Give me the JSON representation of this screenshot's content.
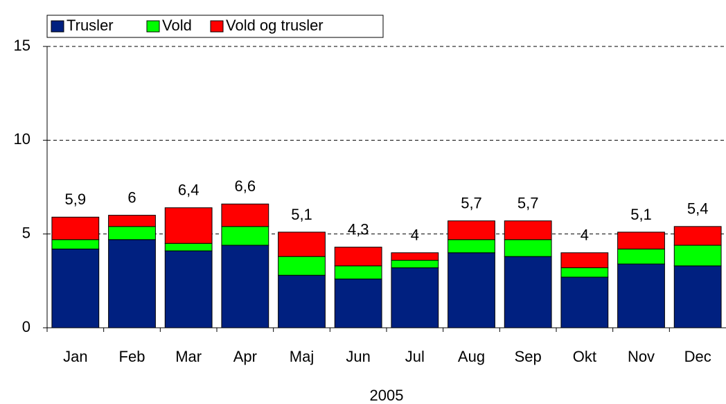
{
  "chart_data": {
    "type": "stacked-bar",
    "x_label": "2005",
    "categories": [
      "Jan",
      "Feb",
      "Mar",
      "Apr",
      "Maj",
      "Jun",
      "Jul",
      "Aug",
      "Sep",
      "Okt",
      "Nov",
      "Dec"
    ],
    "series": [
      {
        "name": "Trusler",
        "color": "#002080",
        "values": [
          4.2,
          4.7,
          4.1,
          4.4,
          2.8,
          2.6,
          3.2,
          4.0,
          3.8,
          2.7,
          3.4,
          3.3
        ]
      },
      {
        "name": "Vold",
        "color": "#00ff00",
        "values": [
          0.5,
          0.7,
          0.4,
          1.0,
          1.0,
          0.7,
          0.4,
          0.7,
          0.9,
          0.5,
          0.8,
          1.1
        ]
      },
      {
        "name": "Vold og trusler",
        "color": "#ff0000",
        "values": [
          1.2,
          0.6,
          1.9,
          1.2,
          1.3,
          1.0,
          0.4,
          1.0,
          1.0,
          0.8,
          0.9,
          1.0
        ]
      }
    ],
    "totals": [
      5.9,
      6,
      6.4,
      6.6,
      5.1,
      4.3,
      4,
      5.7,
      5.7,
      4,
      5.1,
      5.4
    ],
    "total_labels": [
      "5,9",
      "6",
      "6,4",
      "6,6",
      "5,1",
      "4,3",
      "4",
      "5,7",
      "5,7",
      "4",
      "5,1",
      "5,4"
    ],
    "ylim": [
      0,
      15
    ],
    "yticks": [
      0,
      5,
      10,
      15
    ],
    "grid": true,
    "legend": "top-left"
  }
}
